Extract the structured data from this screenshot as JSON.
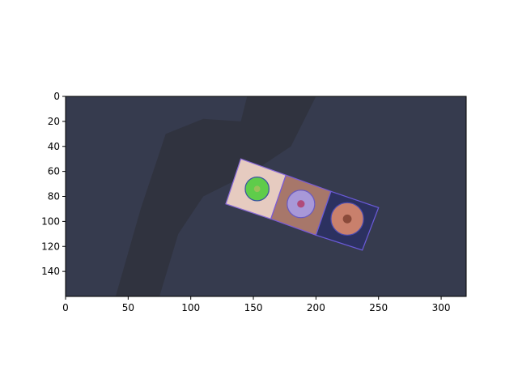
{
  "chart_data": {
    "type": "image",
    "xlim": [
      0,
      320
    ],
    "ylim": [
      160,
      0
    ],
    "xticks": [
      0,
      50,
      100,
      150,
      200,
      250,
      300
    ],
    "yticks": [
      0,
      20,
      40,
      60,
      80,
      100,
      120,
      140
    ]
  }
}
